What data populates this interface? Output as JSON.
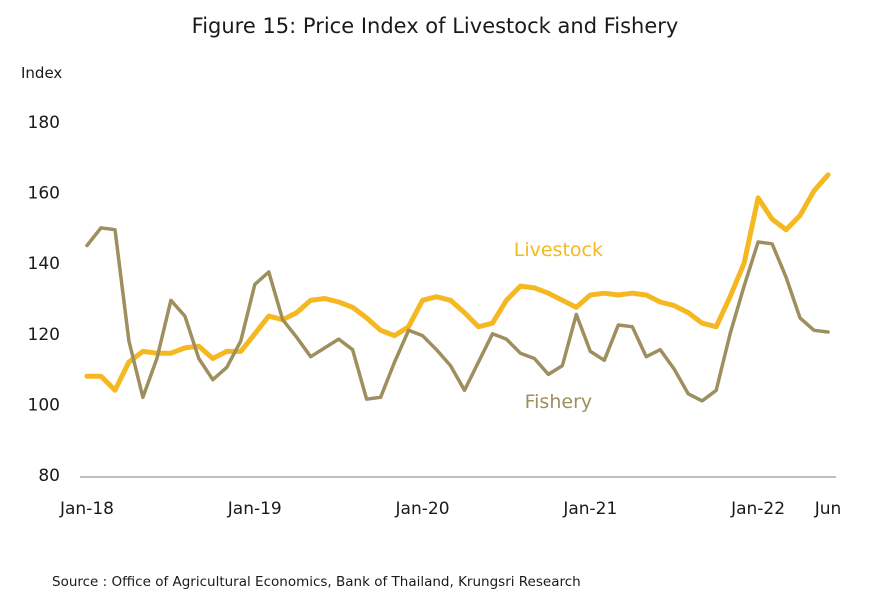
{
  "chart_data": {
    "type": "line",
    "title": "Figure 15: Price Index of Livestock and Fishery",
    "ylabel": "Index",
    "source": "Source : Office of Agricultural Economics, Bank of Thailand, Krungsri Research",
    "ylim": [
      80,
      180
    ],
    "yticks": [
      80,
      100,
      120,
      140,
      160,
      180
    ],
    "xlim_months": [
      "2018-01",
      "2022-06"
    ],
    "xtick_labels": [
      {
        "label": "Jan-18",
        "month": "2018-01"
      },
      {
        "label": "Jan-19",
        "month": "2019-01"
      },
      {
        "label": "Jan-20",
        "month": "2020-01"
      },
      {
        "label": "Jan-21",
        "month": "2021-01"
      },
      {
        "label": "Jan-22",
        "month": "2022-01"
      },
      {
        "label": "Jun",
        "month": "2022-06"
      }
    ],
    "grid": false,
    "series": [
      {
        "name": "Livestock",
        "color": "#F5B821",
        "values": [
          108,
          108,
          104,
          112,
          115,
          114.5,
          114.5,
          116,
          116.5,
          113,
          115,
          115,
          120,
          125,
          124,
          126,
          129.5,
          130,
          129,
          127.5,
          124.5,
          121,
          119.5,
          122,
          129.5,
          130.5,
          129.5,
          126,
          122,
          123,
          129.5,
          133.5,
          133,
          131.5,
          129.5,
          127.5,
          131,
          131.5,
          131,
          131.5,
          131,
          129,
          128,
          126,
          123,
          122,
          130.5,
          140,
          158.5,
          152.5,
          149.5,
          153.5,
          160.5,
          165
        ]
      },
      {
        "name": "Fishery",
        "color": "#9E8F5E",
        "values": [
          145,
          150,
          149.5,
          118,
          102,
          113,
          129.5,
          125,
          113,
          107,
          110.5,
          118,
          134,
          137.5,
          124,
          119,
          113.5,
          116,
          118.5,
          115.5,
          101.5,
          102,
          112,
          121,
          119.5,
          115.5,
          111,
          104,
          112,
          120,
          118.5,
          114.5,
          113,
          108.5,
          111,
          125.5,
          115,
          112.5,
          122.5,
          122,
          113.5,
          115.5,
          110,
          103,
          101,
          104,
          120,
          133.5,
          146,
          145.5,
          136,
          124.5,
          121,
          120.5
        ]
      }
    ],
    "annotations": [
      {
        "text": "Livestock",
        "color": "#F5B821",
        "month": "2020-10",
        "y": 142
      },
      {
        "text": "Fishery",
        "color": "#9E8F5E",
        "month": "2020-10",
        "y": 99
      }
    ]
  }
}
